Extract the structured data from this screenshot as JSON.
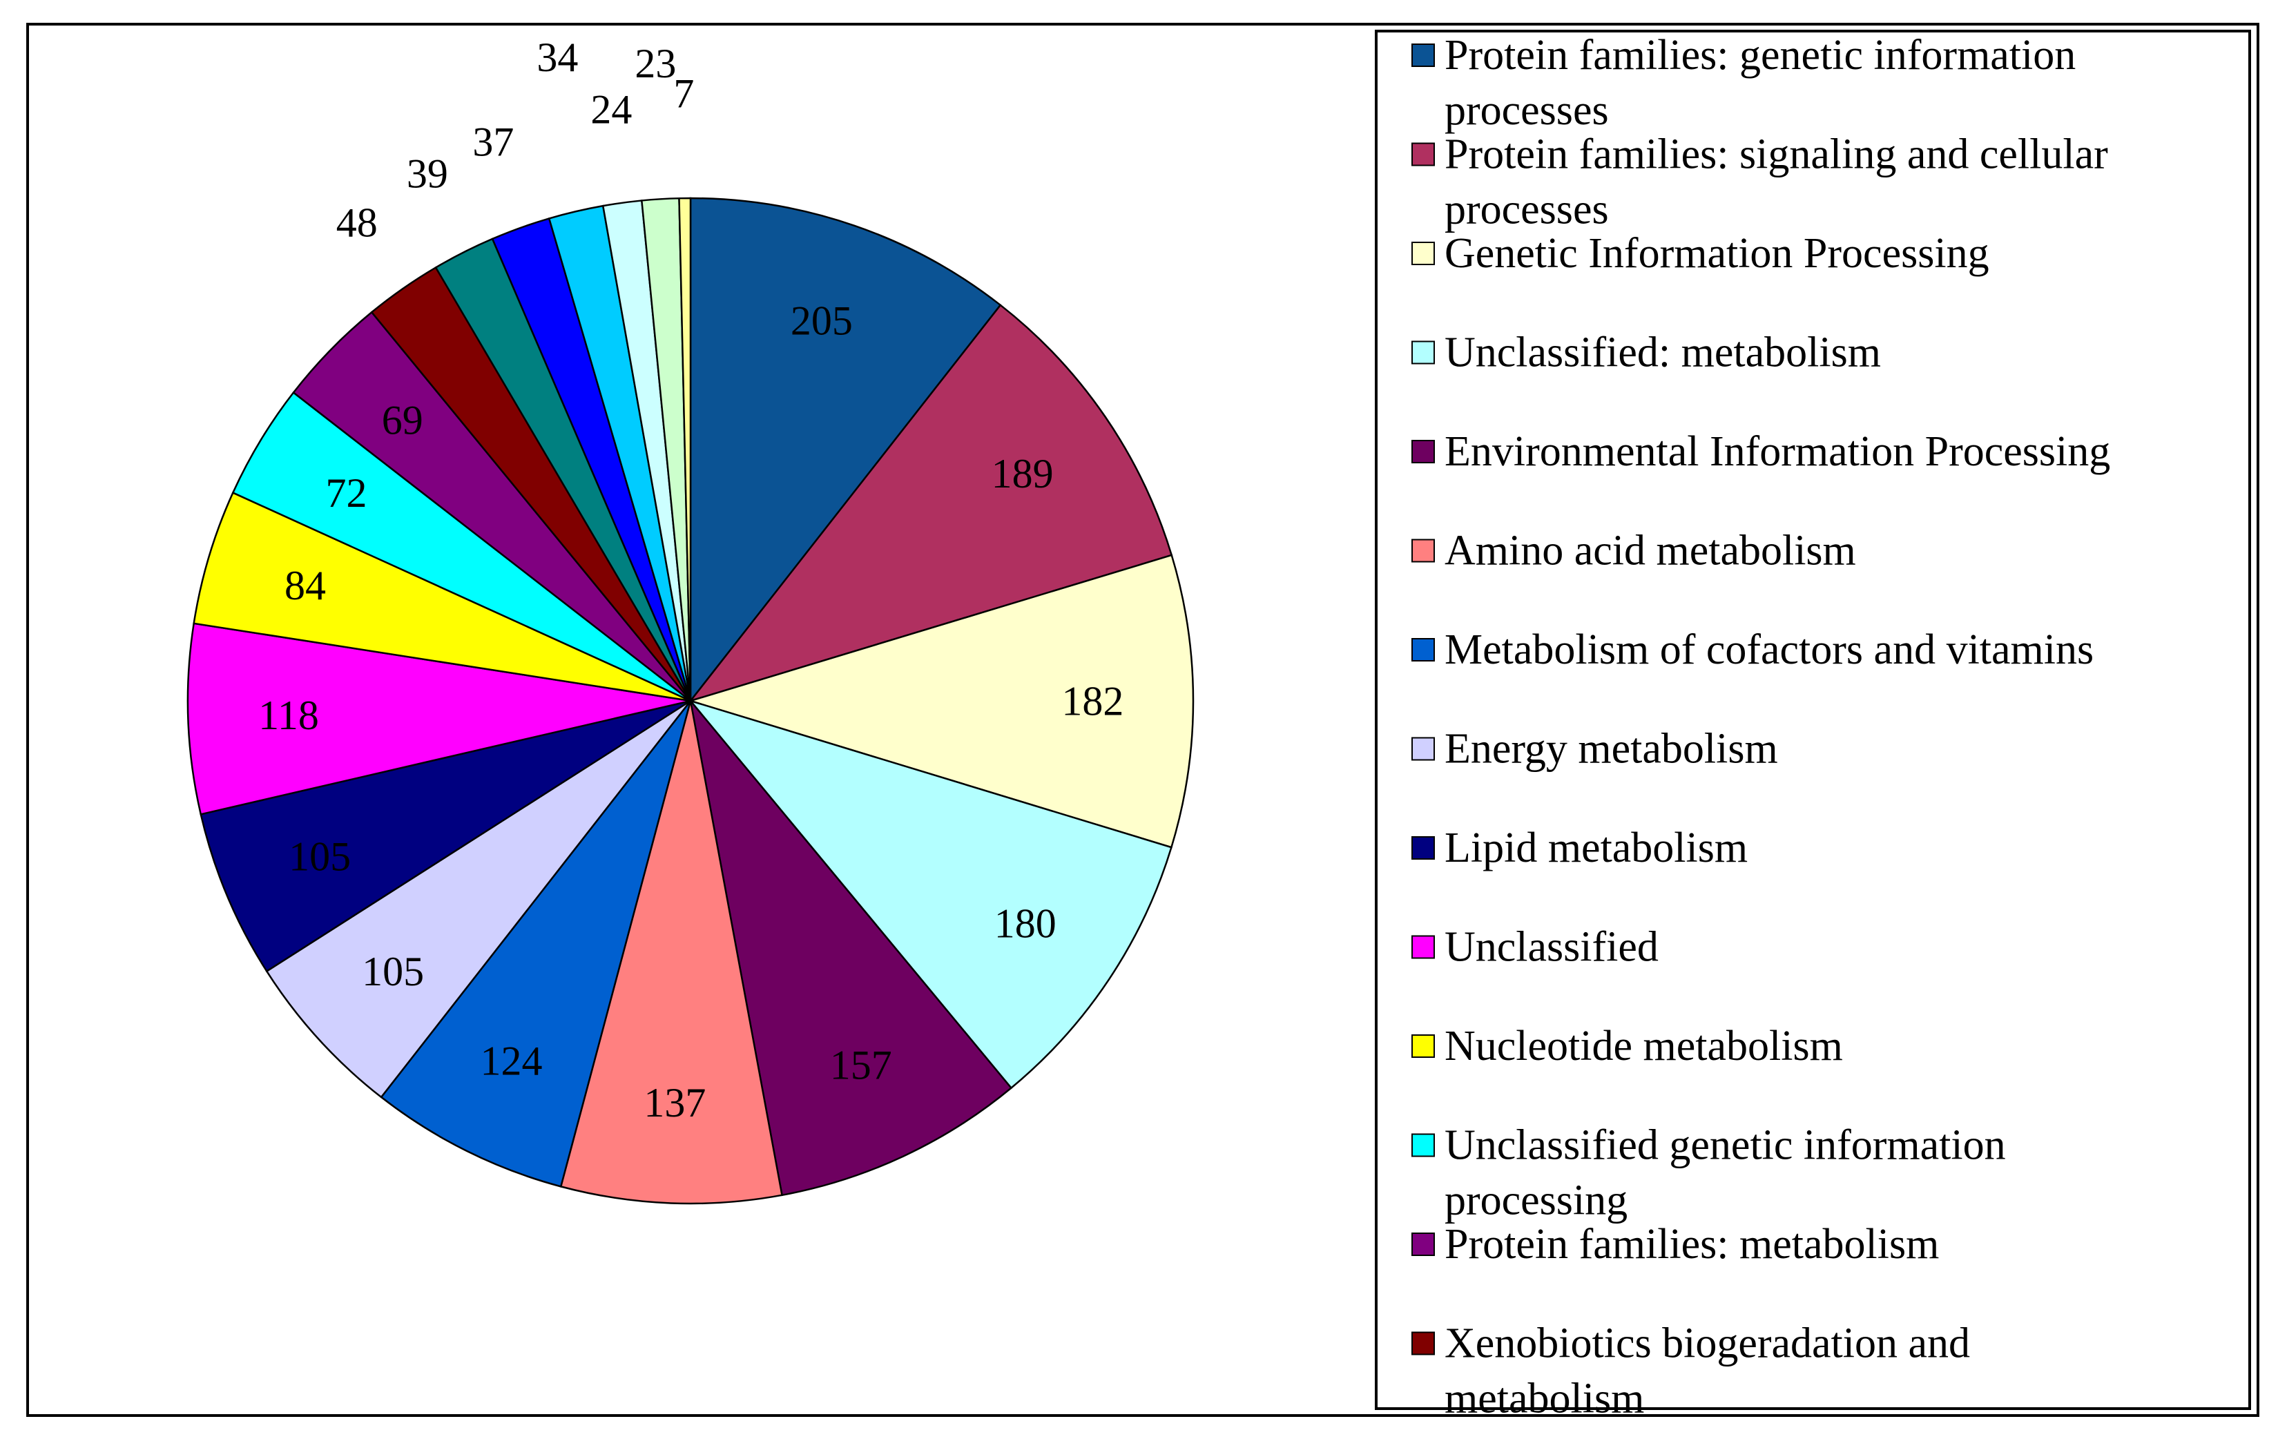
{
  "chart_data": {
    "type": "pie",
    "title": "",
    "legend_position": "right",
    "categories": [
      "Protein families: genetic information processes",
      "Protein families: signaling and cellular processes",
      "Genetic Information Processing",
      "Unclassified: metabolism",
      "Environmental Information Processing",
      "Amino acid metabolism",
      "Metabolism of cofactors and vitamins",
      "Energy metabolism",
      "Lipid metabolism",
      "Unclassified",
      "Nucleotide metabolism",
      "Unclassified genetic information processing",
      "Protein families: metabolism",
      "Xenobiotics biogeradation and metabolism",
      "",
      "",
      "",
      "",
      "",
      ""
    ],
    "values": [
      205,
      189,
      182,
      180,
      157,
      137,
      124,
      105,
      105,
      118,
      84,
      72,
      69,
      48,
      39,
      37,
      34,
      24,
      23,
      7
    ],
    "labels": [
      "205",
      "189",
      "182",
      "180",
      "157",
      "137",
      "124",
      "105",
      "105",
      "118",
      "84",
      "72",
      "69",
      "48",
      "39",
      "37",
      "34",
      "24",
      "23",
      "7"
    ],
    "colors": [
      "#0b5394",
      "#b03060",
      "#ffffcc",
      "#b3ffff",
      "#6e0060",
      "#ff8080",
      "#0060d0",
      "#d0d0ff",
      "#000080",
      "#ff00ff",
      "#ffff00",
      "#00ffff",
      "#800080",
      "#800000",
      "#008080",
      "#0000ff",
      "#00ccff",
      "#ccffff",
      "#ccffcc",
      "#ffff99"
    ],
    "label_colors": [
      "#000000",
      "#000000",
      "#000000",
      "#000000",
      "#000000",
      "#000000",
      "#000000",
      "#000000",
      "#000000",
      "#000000",
      "#000000",
      "#000000",
      "#000000",
      "#000000",
      "#000000",
      "#000000",
      "#000000",
      "#000000",
      "#000000",
      "#000000"
    ]
  },
  "legend": {
    "items": [
      {
        "lines": [
          "Protein families:  genetic  information",
          "processes"
        ],
        "color": "#0b5394"
      },
      {
        "lines": [
          "Protein families:  signaling  and cellular",
          "processes"
        ],
        "color": "#b03060"
      },
      {
        "lines": [
          "Genetic Information  Processing"
        ],
        "color": "#ffffcc"
      },
      {
        "lines": [
          "Unclassified:  metabolism"
        ],
        "color": "#b3ffff"
      },
      {
        "lines": [
          "Environmental  Information  Processing"
        ],
        "color": "#6e0060"
      },
      {
        "lines": [
          "Amino acid metabolism"
        ],
        "color": "#ff8080"
      },
      {
        "lines": [
          "Metabolism of cofactors and vitamins"
        ],
        "color": "#0060d0"
      },
      {
        "lines": [
          "Energy metabolism"
        ],
        "color": "#d0d0ff"
      },
      {
        "lines": [
          "Lipid metabolism"
        ],
        "color": "#000080"
      },
      {
        "lines": [
          "Unclassified"
        ],
        "color": "#ff00ff"
      },
      {
        "lines": [
          "Nucleotide  metabolism"
        ],
        "color": "#ffff00"
      },
      {
        "lines": [
          "Unclassified genetic  information",
          "processing"
        ],
        "color": "#00ffff"
      },
      {
        "lines": [
          "Protein families:  metabolism"
        ],
        "color": "#800080"
      },
      {
        "lines": [
          "Xenobiotics biogeradation  and",
          "metabolism"
        ],
        "color": "#800000"
      }
    ]
  }
}
